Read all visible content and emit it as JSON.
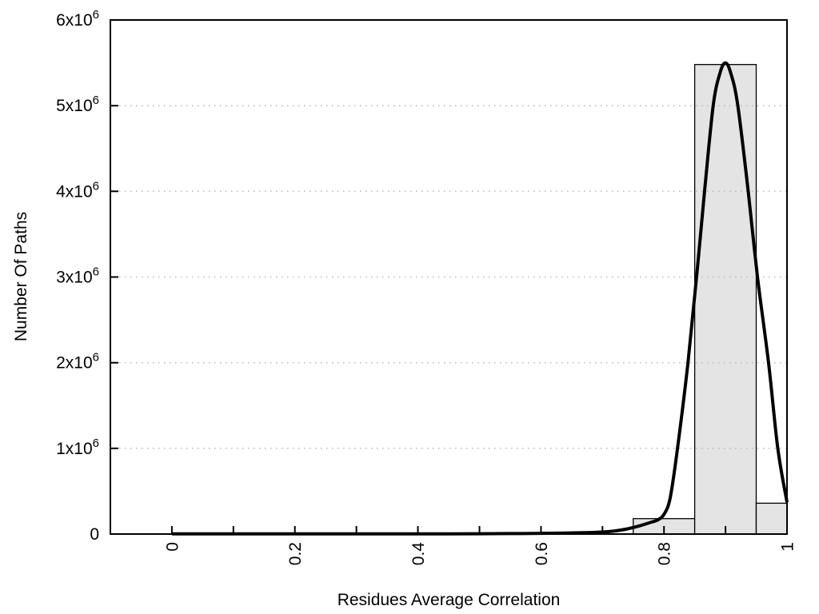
{
  "chart_data": {
    "type": "bar",
    "subtype": "histogram-with-fit-curve",
    "title": "",
    "xlabel": "Residues Average Correlation",
    "ylabel": "Number Of Paths",
    "xlim": [
      -0.1,
      1.0
    ],
    "ylim": [
      0,
      6000000
    ],
    "grid": "y-dotted",
    "legend": "none",
    "background_color": "#ffffff",
    "frame_color": "#000000",
    "grid_color": "#b8b8b8",
    "bar_fill": "#e4e4e4",
    "bar_stroke": "#000000",
    "x_ticks": [
      {
        "value": 0.0,
        "label": "0"
      },
      {
        "value": 0.1,
        "label": ""
      },
      {
        "value": 0.2,
        "label": "0.2"
      },
      {
        "value": 0.3,
        "label": ""
      },
      {
        "value": 0.4,
        "label": "0.4"
      },
      {
        "value": 0.5,
        "label": ""
      },
      {
        "value": 0.6,
        "label": "0.6"
      },
      {
        "value": 0.7,
        "label": ""
      },
      {
        "value": 0.8,
        "label": "0.8"
      },
      {
        "value": 0.9,
        "label": ""
      },
      {
        "value": 1.0,
        "label": "1"
      }
    ],
    "y_ticks": [
      {
        "value": 0,
        "text": "0",
        "sup": ""
      },
      {
        "value": 1000000,
        "text": "1x10",
        "sup": "6"
      },
      {
        "value": 2000000,
        "text": "2x10",
        "sup": "6"
      },
      {
        "value": 3000000,
        "text": "3x10",
        "sup": "6"
      },
      {
        "value": 4000000,
        "text": "4x10",
        "sup": "6"
      },
      {
        "value": 5000000,
        "text": "5x10",
        "sup": "6"
      },
      {
        "value": 6000000,
        "text": "6x10",
        "sup": "6"
      }
    ],
    "bars": [
      {
        "x0": 0.75,
        "x1": 0.85,
        "count": 180000
      },
      {
        "x0": 0.85,
        "x1": 0.95,
        "count": 5480000
      },
      {
        "x0": 0.95,
        "x1": 1.0,
        "count": 360000
      }
    ],
    "curve": {
      "name": "fit-curve",
      "color": "#000000",
      "width": 4,
      "points": [
        [
          0.0,
          2000
        ],
        [
          0.05,
          2000
        ],
        [
          0.1,
          2000
        ],
        [
          0.15,
          2000
        ],
        [
          0.2,
          2000
        ],
        [
          0.25,
          2000
        ],
        [
          0.3,
          2000
        ],
        [
          0.35,
          2000
        ],
        [
          0.4,
          2500
        ],
        [
          0.45,
          3000
        ],
        [
          0.5,
          4000
        ],
        [
          0.55,
          5500
        ],
        [
          0.6,
          8000
        ],
        [
          0.64,
          12000
        ],
        [
          0.68,
          18000
        ],
        [
          0.7,
          24000
        ],
        [
          0.72,
          36000
        ],
        [
          0.74,
          60000
        ],
        [
          0.76,
          95000
        ],
        [
          0.78,
          140000
        ],
        [
          0.79,
          165000
        ],
        [
          0.8,
          230000
        ],
        [
          0.81,
          420000
        ],
        [
          0.822,
          1000000
        ],
        [
          0.839,
          2000000
        ],
        [
          0.853,
          3000000
        ],
        [
          0.866,
          4000000
        ],
        [
          0.88,
          5000000
        ],
        [
          0.891,
          5380000
        ],
        [
          0.9,
          5500000
        ],
        [
          0.909,
          5370000
        ],
        [
          0.92,
          5000000
        ],
        [
          0.937,
          4000000
        ],
        [
          0.952,
          3000000
        ],
        [
          0.97,
          2000000
        ],
        [
          0.985,
          1000000
        ],
        [
          1.0,
          370000
        ]
      ]
    }
  }
}
